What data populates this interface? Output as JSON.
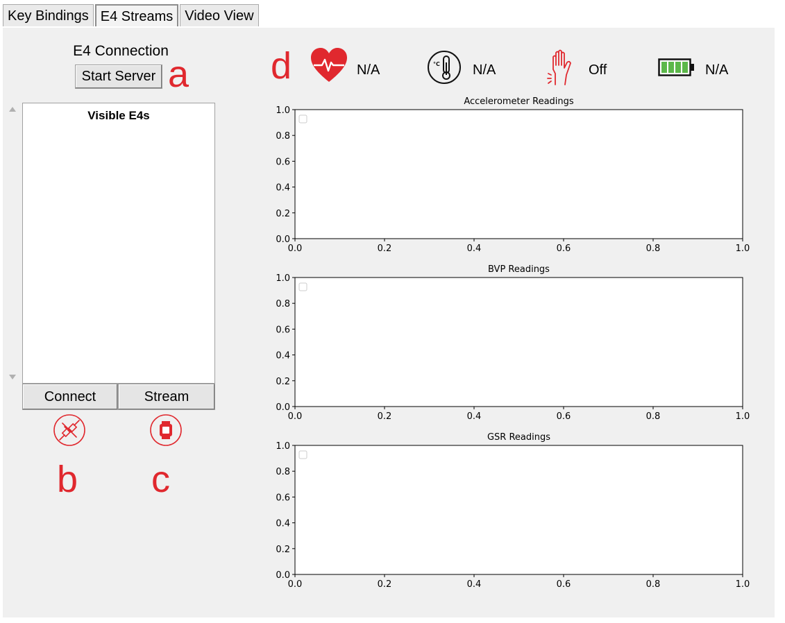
{
  "tabs": [
    {
      "label": "Key Bindings",
      "active": false
    },
    {
      "label": "E4 Streams",
      "active": true
    },
    {
      "label": "Video View",
      "active": false
    }
  ],
  "connection": {
    "title": "E4 Connection",
    "start_server_label": "Start Server",
    "list_title": "Visible E4s",
    "connect_label": "Connect",
    "stream_label": "Stream"
  },
  "annotations": {
    "a": "a",
    "b": "b",
    "c": "c",
    "d": "d"
  },
  "status": {
    "heart_rate": {
      "icon": "heart-icon",
      "value": "N/A"
    },
    "temperature": {
      "icon": "thermometer-icon",
      "value": "N/A"
    },
    "wrist": {
      "icon": "hand-icon",
      "value": "Off"
    },
    "battery": {
      "icon": "battery-icon",
      "value": "N/A"
    }
  },
  "colors": {
    "accent_red": "#e0282e",
    "battery_green": "#5cb84a",
    "panel_bg": "#f0f0f0"
  },
  "chart_data": [
    {
      "type": "line",
      "title": "Accelerometer Readings",
      "xlim": [
        0,
        1
      ],
      "ylim": [
        0,
        1
      ],
      "x_ticks": [
        "0.0",
        "0.2",
        "0.4",
        "0.6",
        "0.8",
        "1.0"
      ],
      "y_ticks": [
        "0.0",
        "0.2",
        "0.4",
        "0.6",
        "0.8",
        "1.0"
      ],
      "series": [],
      "legend": "top-left"
    },
    {
      "type": "line",
      "title": "BVP Readings",
      "xlim": [
        0,
        1
      ],
      "ylim": [
        0,
        1
      ],
      "x_ticks": [
        "0.0",
        "0.2",
        "0.4",
        "0.6",
        "0.8",
        "1.0"
      ],
      "y_ticks": [
        "0.0",
        "0.2",
        "0.4",
        "0.6",
        "0.8",
        "1.0"
      ],
      "series": [],
      "legend": "top-left"
    },
    {
      "type": "line",
      "title": "GSR Readings",
      "xlim": [
        0,
        1
      ],
      "ylim": [
        0,
        1
      ],
      "x_ticks": [
        "0.0",
        "0.2",
        "0.4",
        "0.6",
        "0.8",
        "1.0"
      ],
      "y_ticks": [
        "0.0",
        "0.2",
        "0.4",
        "0.6",
        "0.8",
        "1.0"
      ],
      "series": [],
      "legend": "top-left"
    }
  ]
}
